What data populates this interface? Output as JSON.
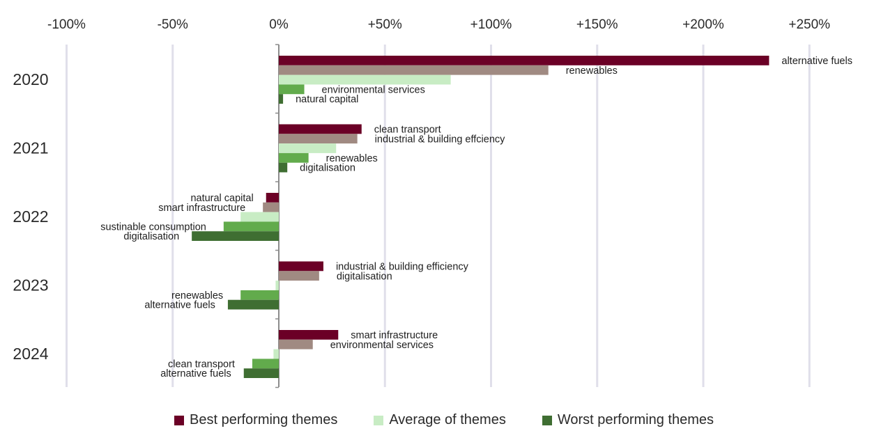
{
  "colors": {
    "best": "#6b0026",
    "best_second": "#a08a82",
    "average": "#c8ecc4",
    "worst_second": "#62ab4c",
    "worst": "#3f6e32",
    "grid": "#e0dfea",
    "axis": "#8c8c8c"
  },
  "legend": [
    {
      "label": "Best performing themes",
      "color": "#6b0026"
    },
    {
      "label": "Average of themes",
      "color": "#c8ecc4"
    },
    {
      "label": "Worst performing themes",
      "color": "#3f6e32"
    }
  ],
  "chart_data": {
    "type": "bar",
    "orientation": "horizontal",
    "title": "",
    "xlabel": "",
    "ylabel": "",
    "xlim": [
      -100,
      250
    ],
    "x_ticks": [
      -100,
      -50,
      0,
      50,
      100,
      150,
      200,
      250
    ],
    "x_tick_labels": [
      "-100%",
      "-50%",
      "0%",
      "+50%",
      "+100%",
      "+150%",
      "+200%",
      "+250%"
    ],
    "x_axis_position": "top",
    "grid": true,
    "legend_position": "bottom",
    "categories": [
      "2020",
      "2021",
      "2022",
      "2023",
      "2024"
    ],
    "groups": [
      {
        "year": "2020",
        "bars": [
          {
            "role": "best",
            "value": 231,
            "label": "alternative fuels"
          },
          {
            "role": "best_second",
            "value": 127,
            "label": "renewables"
          },
          {
            "role": "average",
            "value": 81,
            "label": ""
          },
          {
            "role": "worst_second",
            "value": 12,
            "label": "environmental services"
          },
          {
            "role": "worst",
            "value": 2,
            "label": "natural capital"
          }
        ]
      },
      {
        "year": "2021",
        "bars": [
          {
            "role": "best",
            "value": 39,
            "label": "clean transport"
          },
          {
            "role": "best_second",
            "value": 37,
            "label": "industrial & building effciency"
          },
          {
            "role": "average",
            "value": 27,
            "label": ""
          },
          {
            "role": "worst_second",
            "value": 14,
            "label": "renewables"
          },
          {
            "role": "worst",
            "value": 4,
            "label": "digitalisation"
          }
        ]
      },
      {
        "year": "2022",
        "bars": [
          {
            "role": "best",
            "value": -6,
            "label": "natural capital"
          },
          {
            "role": "best_second",
            "value": -7.5,
            "label": "smart infrastructure"
          },
          {
            "role": "average",
            "value": -18,
            "label": ""
          },
          {
            "role": "worst_second",
            "value": -26,
            "label": "sustinable consumption"
          },
          {
            "role": "worst",
            "value": -41,
            "label": "digitalisation"
          }
        ]
      },
      {
        "year": "2023",
        "bars": [
          {
            "role": "best",
            "value": 21,
            "label": "industrial & building efficiency"
          },
          {
            "role": "best_second",
            "value": 19,
            "label": "digitalisation"
          },
          {
            "role": "average",
            "value": -1.5,
            "label": ""
          },
          {
            "role": "worst_second",
            "value": -18,
            "label": "renewables"
          },
          {
            "role": "worst",
            "value": -24,
            "label": "alternative fuels"
          }
        ]
      },
      {
        "year": "2024",
        "bars": [
          {
            "role": "best",
            "value": 28,
            "label": "smart infrastructure"
          },
          {
            "role": "best_second",
            "value": 16,
            "label": "environmental services"
          },
          {
            "role": "average",
            "value": -2.5,
            "label": ""
          },
          {
            "role": "worst_second",
            "value": -12.5,
            "label": "clean transport"
          },
          {
            "role": "worst",
            "value": -16.5,
            "label": "alternative fuels"
          }
        ]
      }
    ]
  }
}
